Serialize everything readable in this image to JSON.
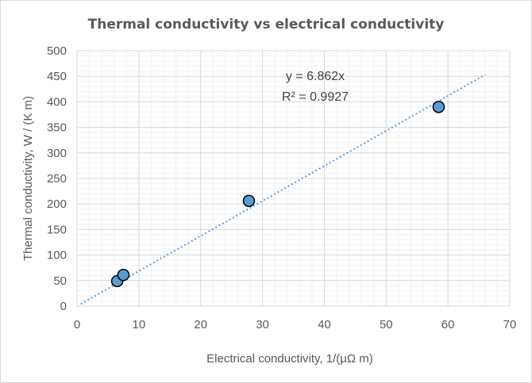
{
  "chart_data": {
    "type": "scatter",
    "title": "Thermal conductivity vs electrical conductivity",
    "xlabel": "Electrical conductivity, 1/(μΩ m)",
    "ylabel": "Thermal conductivity, W / (K m)",
    "xlim": [
      0,
      70
    ],
    "ylim": [
      0,
      500
    ],
    "x_ticks": [
      0,
      10,
      20,
      30,
      40,
      50,
      60,
      70
    ],
    "y_ticks": [
      0,
      50,
      100,
      150,
      200,
      250,
      300,
      350,
      400,
      450,
      500
    ],
    "grid": true,
    "minor_grid": true,
    "legend": "none",
    "marker_color": "#5b9bd5",
    "marker_edge_color": "#000000",
    "trendline_color": "#5b9bd5",
    "points": [
      {
        "x": 6.5,
        "y": 49
      },
      {
        "x": 7.5,
        "y": 61
      },
      {
        "x": 27.8,
        "y": 206
      },
      {
        "x": 58.5,
        "y": 390
      }
    ],
    "trendline": {
      "type": "linear",
      "slope": 6.862,
      "intercept": 0,
      "x_range": [
        0.6,
        66
      ],
      "equation_label": "y = 6.862x",
      "r2_label": "R² = 0.9927"
    }
  }
}
